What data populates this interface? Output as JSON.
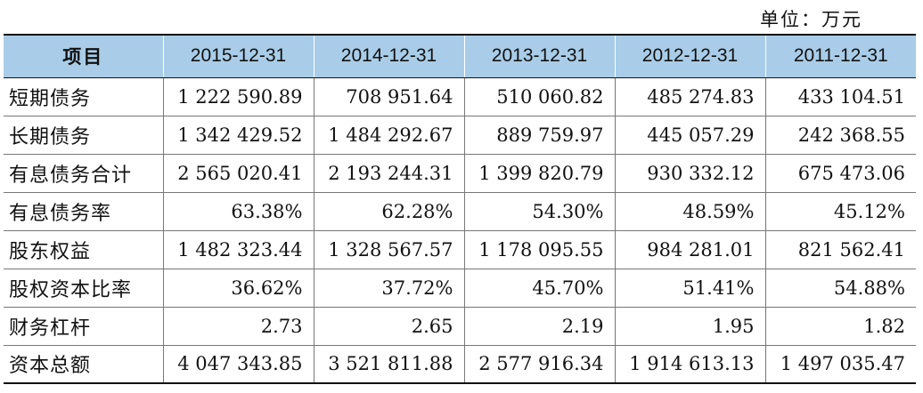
{
  "unit_note": "单位：万元",
  "table": {
    "headers": [
      "项目",
      "2015-12-31",
      "2014-12-31",
      "2013-12-31",
      "2012-12-31",
      "2011-12-31"
    ],
    "rows": [
      {
        "label": "短期债务",
        "values": [
          "1 222 590.89",
          "708 951.64",
          "510 060.82",
          "485 274.83",
          "433 104.51"
        ]
      },
      {
        "label": "长期债务",
        "values": [
          "1 342 429.52",
          "1 484 292.67",
          "889 759.97",
          "445 057.29",
          "242 368.55"
        ]
      },
      {
        "label": "有息债务合计",
        "values": [
          "2 565 020.41",
          "2 193 244.31",
          "1 399 820.79",
          "930 332.12",
          "675 473.06"
        ]
      },
      {
        "label": "有息债务率",
        "values": [
          "63.38%",
          "62.28%",
          "54.30%",
          "48.59%",
          "45.12%"
        ]
      },
      {
        "label": "股东权益",
        "values": [
          "1 482 323.44",
          "1 328 567.57",
          "1 178 095.55",
          "984 281.01",
          "821 562.41"
        ]
      },
      {
        "label": "股权资本比率",
        "values": [
          "36.62%",
          "37.72%",
          "45.70%",
          "51.41%",
          "54.88%"
        ]
      },
      {
        "label": "财务杠杆",
        "values": [
          "2.73",
          "2.65",
          "2.19",
          "1.95",
          "1.82"
        ]
      },
      {
        "label": "资本总额",
        "values": [
          "4 047 343.85",
          "3 521 811.88",
          "2 577 916.34",
          "1 914 613.13",
          "1 497 035.47"
        ]
      }
    ]
  },
  "colors": {
    "header_background": "#a9cde8",
    "text": "#111111"
  }
}
